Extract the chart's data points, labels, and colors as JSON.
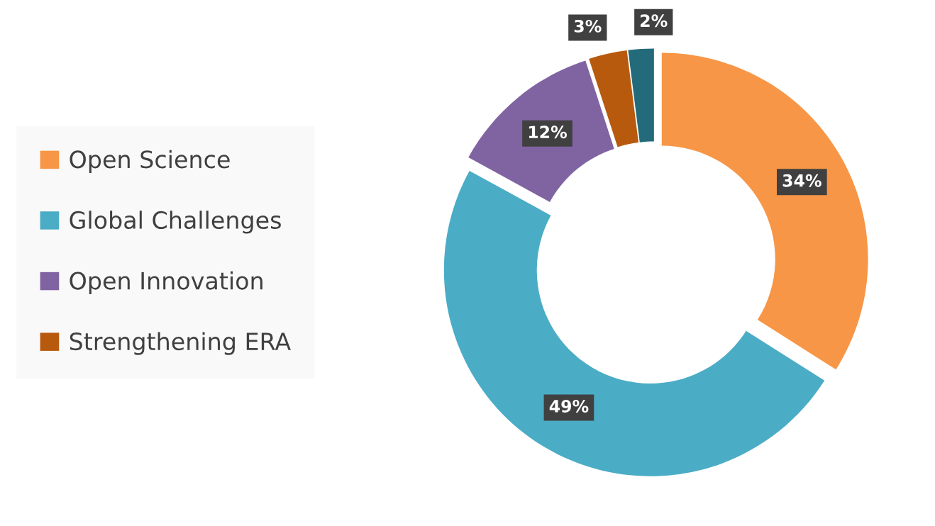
{
  "chart_data": {
    "type": "donut",
    "categories": [
      "Open Science",
      "Global Challenges",
      "Open Innovation",
      "Strengthening ERA",
      null
    ],
    "values": [
      34,
      49,
      12,
      3,
      2
    ],
    "colors": [
      "#f79646",
      "#4bacc6",
      "#8064a2",
      "#b85a0e",
      "#236b7b"
    ],
    "value_labels": [
      "34%",
      "49%",
      "12%",
      "3%",
      "2%"
    ],
    "legend": "left"
  }
}
